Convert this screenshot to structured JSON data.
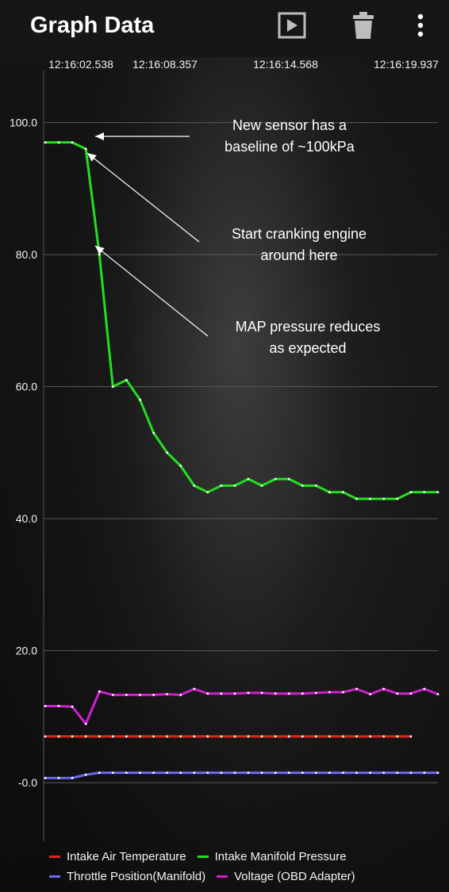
{
  "app_bar": {
    "title": "Graph Data",
    "play_icon": "play-icon",
    "delete_icon": "trash-icon",
    "menu_icon": "more-vert-icon"
  },
  "colors": {
    "intake_air_temperature": "#e0261b",
    "intake_manifold_pressure": "#22e01f",
    "throttle_position": "#6a6af0",
    "voltage": "#d020d0"
  },
  "chart_data": {
    "type": "line",
    "x_tick_labels": [
      "12:16:02.538",
      "12:16:08.357",
      "12:16:14.568",
      "12:16:19.937"
    ],
    "y_tick_labels": [
      "100.0",
      "80.0",
      "60.0",
      "40.0",
      "20.0",
      "-0.0"
    ],
    "ylim": [
      -9,
      108
    ],
    "grid": true,
    "legend_position": "bottom",
    "series": [
      {
        "name": "Intake Manifold Pressure",
        "color": "#22e01f",
        "values": [
          97,
          97,
          97,
          96,
          80,
          60,
          61,
          58,
          53,
          50,
          48,
          45,
          44,
          45,
          45,
          46,
          45,
          46,
          46,
          45,
          45,
          44,
          44,
          43,
          43,
          43,
          43,
          44,
          44,
          44
        ]
      },
      {
        "name": "Voltage (OBD Adapter)",
        "color": "#d020d0",
        "values": [
          11.6,
          11.6,
          11.5,
          8.9,
          13.8,
          13.3,
          13.3,
          13.3,
          13.3,
          13.4,
          13.3,
          14.2,
          13.5,
          13.5,
          13.5,
          13.6,
          13.6,
          13.5,
          13.5,
          13.5,
          13.6,
          13.7,
          13.7,
          14.2,
          13.4,
          14.2,
          13.5,
          13.5,
          14.2,
          13.4
        ]
      },
      {
        "name": "Intake Air Temperature",
        "color": "#e0261b",
        "values": [
          7,
          7,
          7,
          7,
          7,
          7,
          7,
          7,
          7,
          7,
          7,
          7,
          7,
          7,
          7,
          7,
          7,
          7,
          7,
          7,
          7,
          7,
          7,
          7,
          7,
          7,
          7,
          7
        ]
      },
      {
        "name": "Throttle Position(Manifold)",
        "color": "#6a6af0",
        "values": [
          0.7,
          0.7,
          0.7,
          1.2,
          1.5,
          1.5,
          1.5,
          1.5,
          1.5,
          1.5,
          1.5,
          1.5,
          1.5,
          1.5,
          1.5,
          1.5,
          1.5,
          1.5,
          1.5,
          1.5,
          1.5,
          1.5,
          1.5,
          1.5,
          1.5,
          1.5,
          1.5,
          1.5,
          1.5,
          1.5
        ]
      }
    ],
    "annotations": [
      {
        "lines": [
          "New sensor has a",
          "baseline of ~100kPa"
        ]
      },
      {
        "lines": [
          "Start cranking engine",
          "around here"
        ]
      },
      {
        "lines": [
          "MAP pressure reduces",
          "as expected"
        ]
      }
    ]
  },
  "legend": [
    {
      "label": "Intake Air Temperature",
      "color": "#e0261b"
    },
    {
      "label": "Intake Manifold Pressure",
      "color": "#22e01f"
    },
    {
      "label": "Throttle Position(Manifold)",
      "color": "#6a6af0"
    },
    {
      "label": "Voltage (OBD Adapter)",
      "color": "#d020d0"
    }
  ]
}
